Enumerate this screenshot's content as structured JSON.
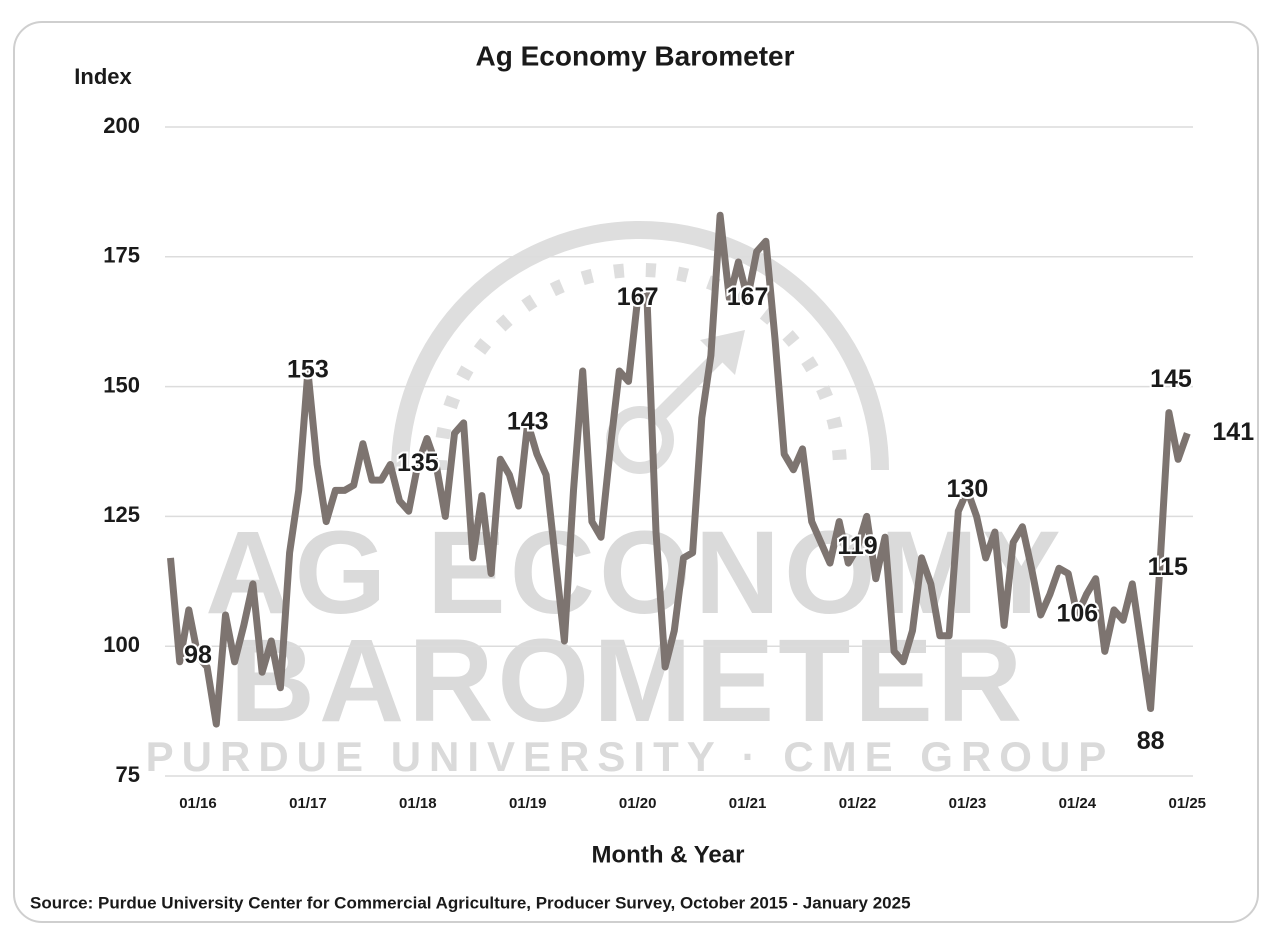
{
  "chart_data": {
    "type": "line",
    "title": "Ag Economy Barometer",
    "y_label": "Index",
    "x_label": "Month & Year",
    "source": "Source: Purdue University Center for Commercial Agriculture, Producer Survey, October 2015 - January 2025",
    "watermark": [
      "AG ECONOMY",
      "BAROMETER",
      "PURDUE UNIVERSITY · CME GROUP"
    ],
    "categories": [
      null,
      null,
      null,
      "01/16",
      null,
      null,
      null,
      null,
      null,
      null,
      null,
      null,
      null,
      null,
      null,
      "01/17",
      null,
      null,
      null,
      null,
      null,
      null,
      null,
      null,
      null,
      null,
      null,
      "01/18",
      null,
      null,
      null,
      null,
      null,
      null,
      null,
      null,
      null,
      null,
      null,
      "01/19",
      null,
      null,
      null,
      null,
      null,
      null,
      null,
      null,
      null,
      null,
      null,
      "01/20",
      null,
      null,
      null,
      null,
      null,
      null,
      null,
      null,
      null,
      null,
      null,
      "01/21",
      null,
      null,
      null,
      null,
      null,
      null,
      null,
      null,
      null,
      null,
      null,
      "01/22",
      null,
      null,
      null,
      null,
      null,
      null,
      null,
      null,
      null,
      null,
      null,
      "01/23",
      null,
      null,
      null,
      null,
      null,
      null,
      null,
      null,
      null,
      null,
      null,
      "01/24",
      null,
      null,
      null,
      null,
      null,
      null,
      null,
      null,
      null,
      null,
      null,
      "01/25"
    ],
    "series": [
      {
        "name": "Index",
        "color": "#7d7470",
        "values": [
          117,
          97,
          107,
          98,
          96,
          85,
          106,
          97,
          104,
          112,
          95,
          101,
          92,
          118,
          130,
          153,
          135,
          124,
          130,
          130,
          131,
          139,
          132,
          132,
          135,
          128,
          126,
          135,
          140,
          135,
          125,
          141,
          143,
          117,
          129,
          114,
          136,
          133,
          127,
          143,
          137,
          133,
          117,
          101,
          130,
          153,
          124,
          121,
          138,
          153,
          151,
          167,
          168,
          122,
          96,
          103,
          117,
          118,
          144,
          156,
          183,
          167,
          174,
          167,
          176,
          178,
          159,
          137,
          134,
          138,
          124,
          120,
          116,
          124,
          116,
          119,
          125,
          113,
          121,
          99,
          97,
          103,
          117,
          112,
          102,
          102,
          126,
          130,
          125,
          117,
          122,
          104,
          120,
          123,
          115,
          106,
          110,
          115,
          114,
          106,
          110,
          113,
          99,
          107,
          105,
          112,
          100,
          88,
          115,
          145,
          136,
          141
        ],
        "value_labels": [
          null,
          null,
          null,
          "98",
          null,
          null,
          null,
          null,
          null,
          null,
          null,
          null,
          null,
          null,
          null,
          "153",
          null,
          null,
          null,
          null,
          null,
          null,
          null,
          null,
          null,
          null,
          null,
          "135",
          null,
          null,
          null,
          null,
          null,
          null,
          null,
          null,
          null,
          null,
          null,
          "143",
          null,
          null,
          null,
          null,
          null,
          null,
          null,
          null,
          null,
          null,
          null,
          "167",
          null,
          null,
          null,
          null,
          null,
          null,
          null,
          null,
          null,
          null,
          null,
          "167",
          null,
          null,
          null,
          null,
          null,
          null,
          null,
          null,
          null,
          null,
          null,
          "119",
          null,
          null,
          null,
          null,
          null,
          null,
          null,
          null,
          null,
          null,
          null,
          "130",
          null,
          null,
          null,
          null,
          null,
          null,
          null,
          null,
          null,
          null,
          null,
          "106",
          null,
          null,
          null,
          null,
          null,
          null,
          null,
          "88",
          "115",
          "145",
          null,
          "141"
        ]
      }
    ],
    "ylim": [
      75,
      200
    ],
    "yticks": [
      75,
      100,
      125,
      150,
      175,
      200
    ],
    "grid": true
  }
}
